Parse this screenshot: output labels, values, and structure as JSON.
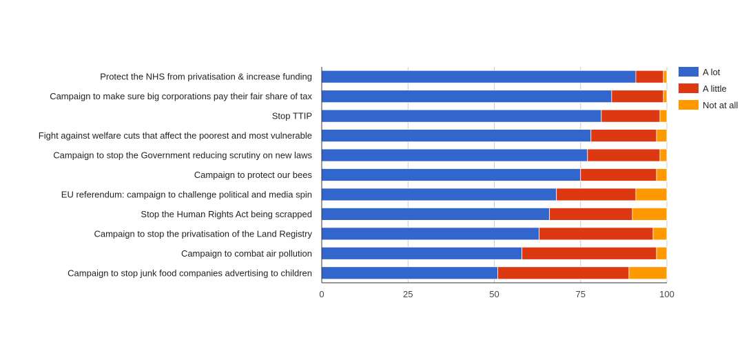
{
  "chart_data": {
    "type": "bar",
    "orientation": "horizontal",
    "stacked": true,
    "title": "",
    "xlabel": "",
    "ylabel": "",
    "xlim": [
      0,
      100
    ],
    "xticks": [
      "0",
      "25",
      "50",
      "75",
      "100"
    ],
    "grid": true,
    "legend_position": "right",
    "categories": [
      "Protect the NHS from privatisation & increase funding",
      "Campaign to make sure big corporations pay their fair share of tax",
      "Stop TTIP",
      "Fight against welfare cuts that affect the poorest and most vulnerable",
      "Campaign to stop the Government reducing scrutiny on new laws",
      "Campaign to protect our bees",
      "EU referendum: campaign to challenge political and media spin",
      "Stop the Human Rights Act being scrapped",
      "Campaign to stop the privatisation of the Land Registry",
      "Campaign to combat air pollution",
      "Campaign to stop junk food companies advertising to children"
    ],
    "series": [
      {
        "name": "A lot",
        "color": "#3366cc",
        "values": [
          91,
          84,
          81,
          78,
          77,
          75,
          68,
          66,
          63,
          58,
          51
        ]
      },
      {
        "name": "A little",
        "color": "#dc3912",
        "values": [
          8,
          15,
          17,
          19,
          21,
          22,
          23,
          24,
          33,
          39,
          38
        ]
      },
      {
        "name": "Not at all",
        "color": "#ff9900",
        "values": [
          1,
          1,
          2,
          3,
          2,
          3,
          9,
          10,
          4,
          3,
          11
        ]
      }
    ]
  }
}
